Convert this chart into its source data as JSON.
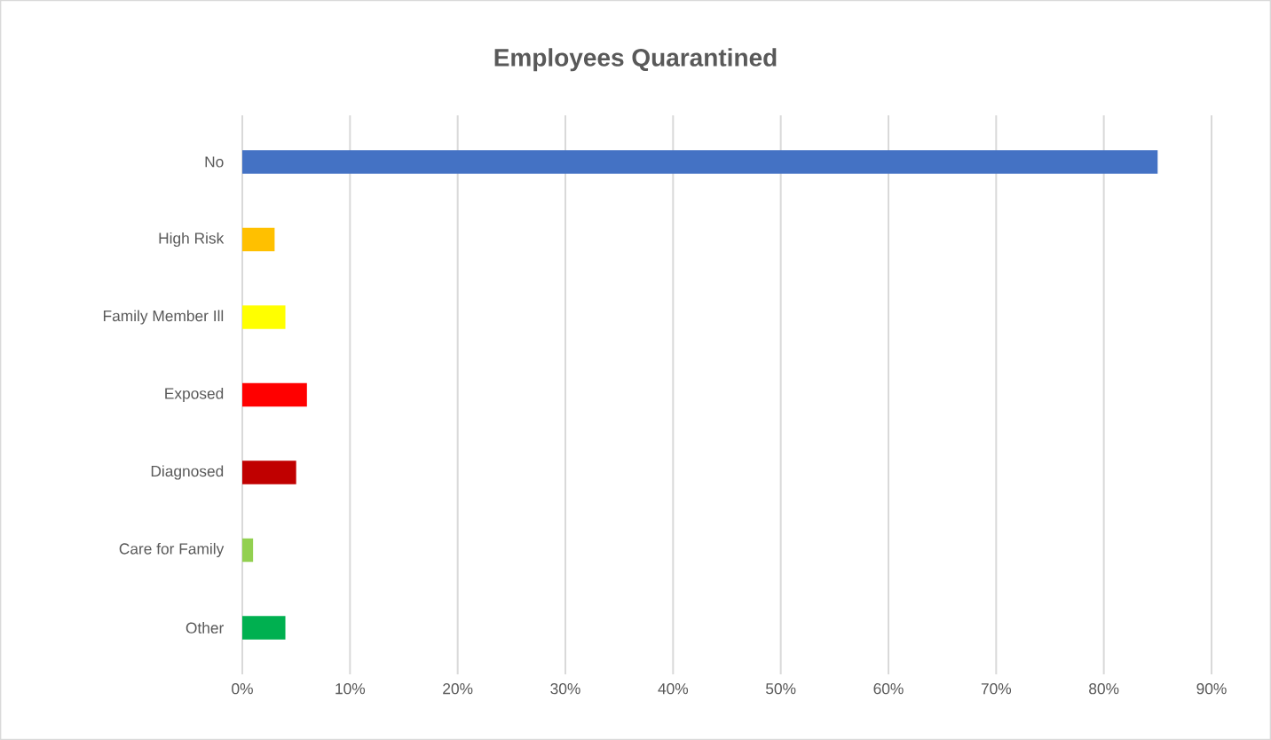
{
  "chart_data": {
    "type": "bar",
    "orientation": "horizontal",
    "title": "Employees Quarantined",
    "categories": [
      "No",
      "High Risk",
      "Family Member Ill",
      "Exposed",
      "Diagnosed",
      "Care for Family",
      "Other"
    ],
    "values": [
      85,
      3,
      4,
      6,
      5,
      1,
      4
    ],
    "colors": [
      "#4472c4",
      "#ffc000",
      "#ffff00",
      "#ff0000",
      "#c00000",
      "#92d050",
      "#00b050"
    ],
    "xlim": [
      0,
      90
    ],
    "xticks": [
      {
        "value": 0,
        "label": "0%"
      },
      {
        "value": 10,
        "label": "10%"
      },
      {
        "value": 20,
        "label": "20%"
      },
      {
        "value": 30,
        "label": "30%"
      },
      {
        "value": 40,
        "label": "40%"
      },
      {
        "value": 50,
        "label": "50%"
      },
      {
        "value": 60,
        "label": "60%"
      },
      {
        "value": 70,
        "label": "70%"
      },
      {
        "value": 80,
        "label": "80%"
      },
      {
        "value": 90,
        "label": "90%"
      }
    ],
    "grid": "x"
  }
}
